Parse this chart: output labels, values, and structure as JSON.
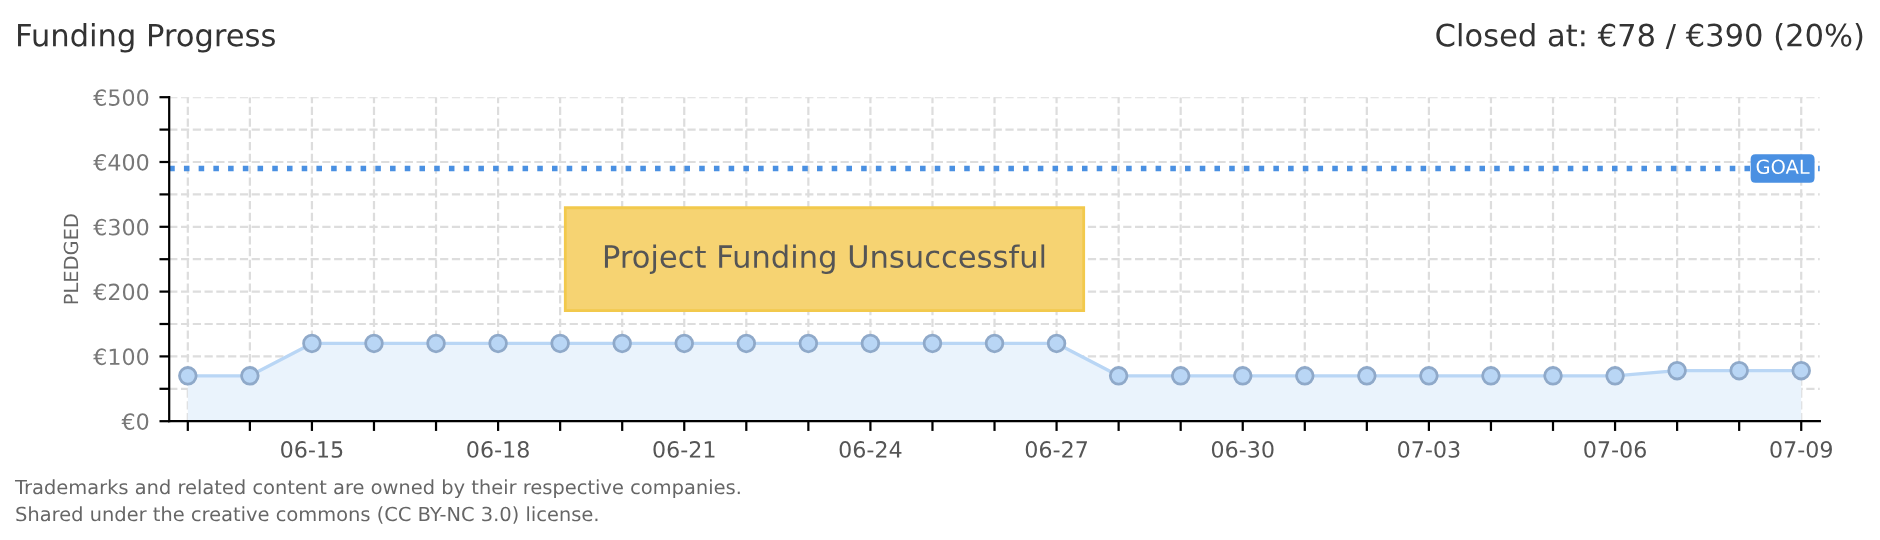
{
  "chart_data": {
    "type": "area",
    "title": "Funding Progress",
    "subtitle": "Closed at: €78 / €390 (20%)",
    "ylabel": "PLEDGED",
    "categories": [
      null,
      null,
      "06-15",
      null,
      null,
      "06-18",
      null,
      null,
      "06-21",
      null,
      null,
      "06-24",
      null,
      null,
      "06-27",
      null,
      null,
      "06-30",
      null,
      null,
      "07-03",
      null,
      null,
      "07-06",
      null,
      null,
      "07-09"
    ],
    "series": [
      {
        "color": "#b9d6f5",
        "values": [
          70,
          70,
          120,
          120,
          120,
          120,
          120,
          120,
          120,
          120,
          120,
          120,
          120,
          120,
          120,
          70,
          70,
          70,
          70,
          70,
          70,
          70,
          70,
          70,
          78,
          78,
          78
        ]
      }
    ],
    "ylim": [
      0,
      500
    ],
    "yticks": [
      {
        "value": 0,
        "label": "€0"
      },
      {
        "value": 50,
        "label": null
      },
      {
        "value": 100,
        "label": "€100"
      },
      {
        "value": 150,
        "label": null
      },
      {
        "value": 200,
        "label": "€200"
      },
      {
        "value": 250,
        "label": null
      },
      {
        "value": 300,
        "label": "€300"
      },
      {
        "value": 350,
        "label": null
      },
      {
        "value": 400,
        "label": "€400"
      },
      {
        "value": 450,
        "label": null
      },
      {
        "value": 500,
        "label": "€500"
      }
    ],
    "ref_lines": [
      {
        "axis": "y",
        "value": 390,
        "label": "GOAL",
        "color": "#4a90e2",
        "line_style": "dotted"
      }
    ],
    "annotations": [
      "Project Funding Unsuccessful",
      "Trademarks and related content are owned by their respective companies.",
      "Shared under the creative commons (CC BY-NC 3.0) license."
    ],
    "grid": true,
    "marker": "circle",
    "legend": false
  }
}
